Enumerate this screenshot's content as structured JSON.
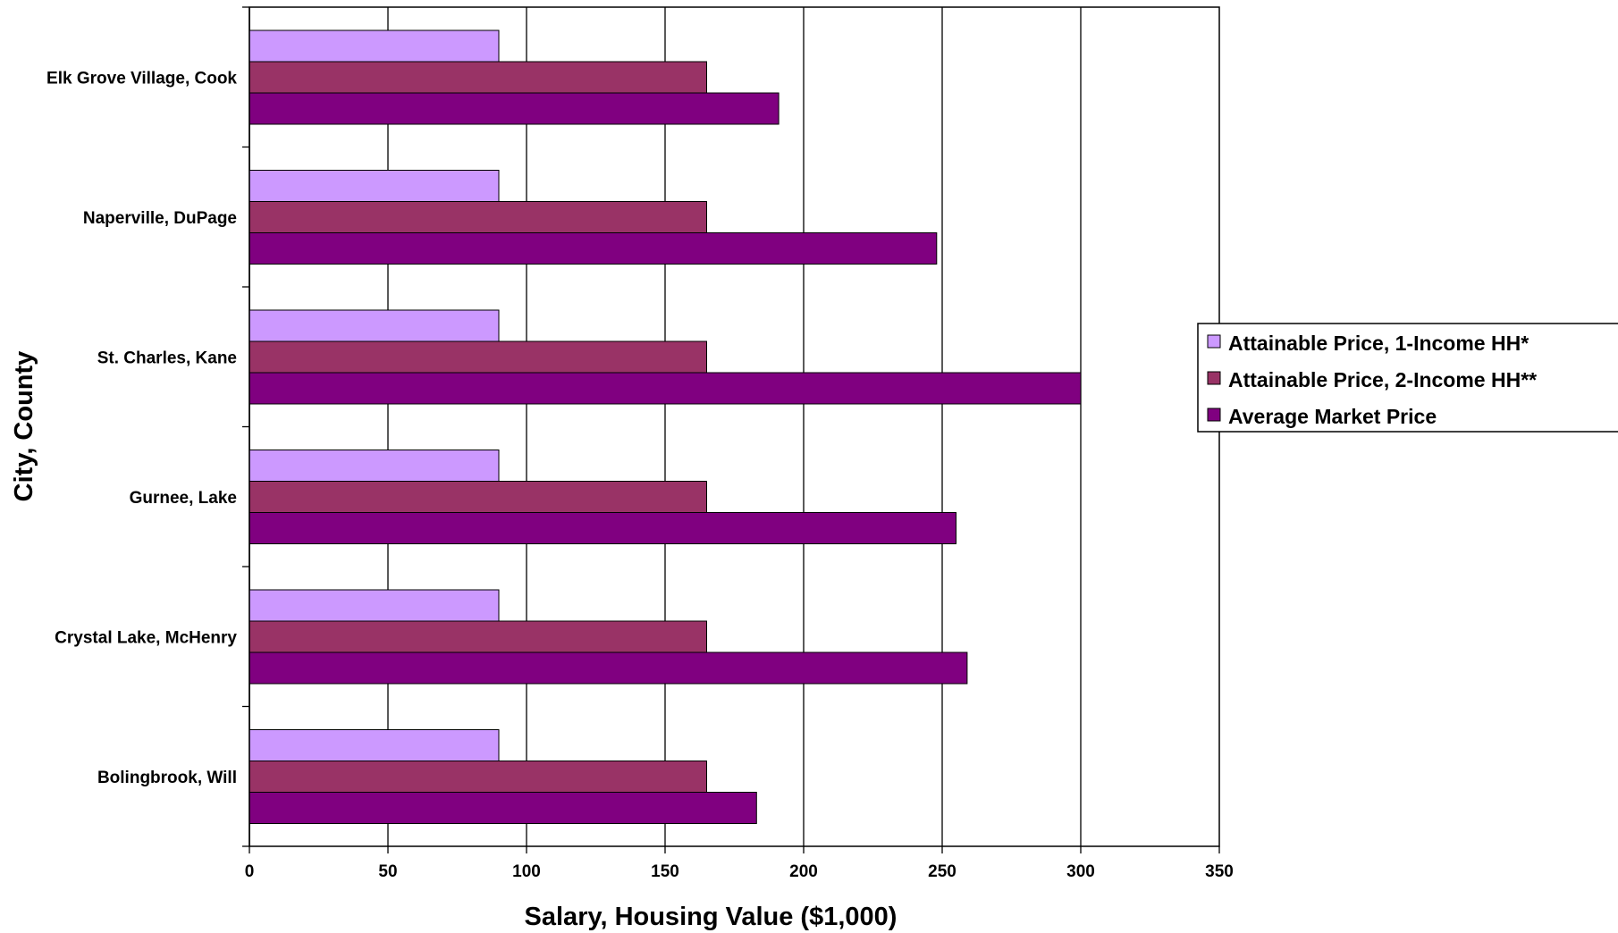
{
  "chart_data": {
    "type": "bar",
    "orientation": "horizontal",
    "categories": [
      "Elk Grove Village, Cook",
      "Naperville, DuPage",
      "St. Charles, Kane",
      "Gurnee, Lake",
      "Crystal Lake, McHenry",
      "Bolingbrook, Will"
    ],
    "series": [
      {
        "name": "Attainable Price, 1-Income HH*",
        "color": "#cc99ff",
        "values": [
          90,
          90,
          90,
          90,
          90,
          90
        ]
      },
      {
        "name": "Attainable Price, 2-Income HH**",
        "color": "#993366",
        "values": [
          165,
          165,
          165,
          165,
          165,
          165
        ]
      },
      {
        "name": "Average Market Price",
        "color": "#800080",
        "values": [
          191,
          248,
          300,
          255,
          259,
          183
        ]
      }
    ],
    "xlabel": "Salary, Housing Value ($1,000)",
    "ylabel": "City, County",
    "xlim": [
      0,
      350
    ],
    "xticks": [
      "0",
      "50",
      "100",
      "150",
      "200",
      "250",
      "300",
      "350"
    ],
    "grid": "vertical",
    "legend_position": "right"
  }
}
